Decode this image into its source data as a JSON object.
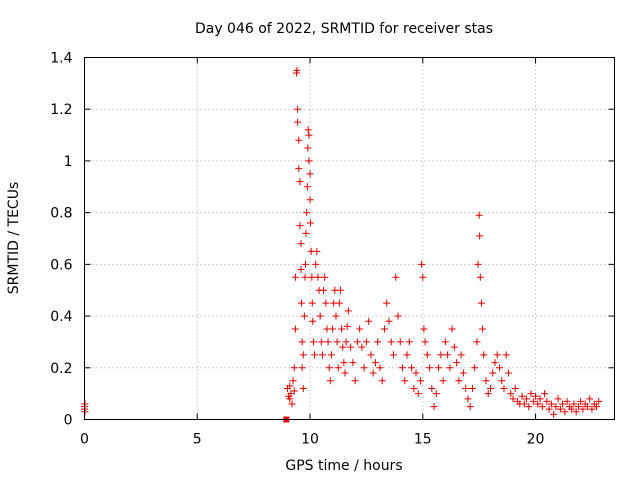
{
  "chart_data": {
    "type": "scatter",
    "title": "Day 046 of 2022, SRMTID for receiver stas",
    "xlabel": "GPS time / hours",
    "ylabel": "SRMTID / TECUs",
    "xlim": [
      0,
      23.5
    ],
    "ylim": [
      0,
      1.4
    ],
    "xticks": [
      0,
      5,
      10,
      15,
      20
    ],
    "xtick_labels": [
      "0",
      "5",
      "10",
      "15",
      "20"
    ],
    "yticks": [
      0,
      0.2,
      0.4,
      0.6,
      0.8,
      1.0,
      1.2,
      1.4
    ],
    "ytick_labels": [
      "0",
      "0.2",
      "0.4",
      "0.6",
      "0.8",
      "1",
      "1.2",
      "1.4"
    ],
    "grid": true,
    "marker": "plus",
    "color": "#e00000",
    "series": [
      {
        "name": "SRMTID",
        "points": [
          [
            0.0,
            0.05
          ],
          [
            0.0,
            0.04
          ],
          [
            0.02,
            0.06
          ],
          [
            0.02,
            0.03
          ],
          [
            8.95,
            0.0
          ],
          [
            9.0,
            0.12
          ],
          [
            9.05,
            0.09
          ],
          [
            9.1,
            0.08
          ],
          [
            9.1,
            0.13
          ],
          [
            9.15,
            0.1
          ],
          [
            9.2,
            0.06
          ],
          [
            9.25,
            0.15
          ],
          [
            9.3,
            0.2
          ],
          [
            9.3,
            0.11
          ],
          [
            9.35,
            0.35
          ],
          [
            9.35,
            0.55
          ],
          [
            9.4,
            1.34
          ],
          [
            9.42,
            1.35
          ],
          [
            9.45,
            1.2
          ],
          [
            9.45,
            1.15
          ],
          [
            9.5,
            1.08
          ],
          [
            9.5,
            0.97
          ],
          [
            9.55,
            0.92
          ],
          [
            9.55,
            0.75
          ],
          [
            9.6,
            0.68
          ],
          [
            9.6,
            0.58
          ],
          [
            9.62,
            0.45
          ],
          [
            9.65,
            0.3
          ],
          [
            9.65,
            0.2
          ],
          [
            9.7,
            0.12
          ],
          [
            9.7,
            0.25
          ],
          [
            9.75,
            0.4
          ],
          [
            9.78,
            0.55
          ],
          [
            9.8,
            0.6
          ],
          [
            9.82,
            0.72
          ],
          [
            9.85,
            0.8
          ],
          [
            9.88,
            0.9
          ],
          [
            9.9,
            1.05
          ],
          [
            9.92,
            1.12
          ],
          [
            9.95,
            1.1
          ],
          [
            9.95,
            1.0
          ],
          [
            10.0,
            0.95
          ],
          [
            10.0,
            0.85
          ],
          [
            10.02,
            0.76
          ],
          [
            10.05,
            0.65
          ],
          [
            10.08,
            0.55
          ],
          [
            10.1,
            0.45
          ],
          [
            10.12,
            0.38
          ],
          [
            10.15,
            0.3
          ],
          [
            10.2,
            0.25
          ],
          [
            10.25,
            0.6
          ],
          [
            10.3,
            0.65
          ],
          [
            10.35,
            0.55
          ],
          [
            10.4,
            0.5
          ],
          [
            10.45,
            0.4
          ],
          [
            10.5,
            0.3
          ],
          [
            10.55,
            0.25
          ],
          [
            10.6,
            0.5
          ],
          [
            10.65,
            0.55
          ],
          [
            10.7,
            0.45
          ],
          [
            10.75,
            0.35
          ],
          [
            10.8,
            0.3
          ],
          [
            10.85,
            0.2
          ],
          [
            10.9,
            0.15
          ],
          [
            10.95,
            0.25
          ],
          [
            11.0,
            0.35
          ],
          [
            11.05,
            0.45
          ],
          [
            11.1,
            0.5
          ],
          [
            11.15,
            0.4
          ],
          [
            11.2,
            0.3
          ],
          [
            11.25,
            0.2
          ],
          [
            11.3,
            0.45
          ],
          [
            11.35,
            0.5
          ],
          [
            11.4,
            0.35
          ],
          [
            11.45,
            0.28
          ],
          [
            11.5,
            0.22
          ],
          [
            11.55,
            0.18
          ],
          [
            11.6,
            0.3
          ],
          [
            11.65,
            0.36
          ],
          [
            11.7,
            0.42
          ],
          [
            11.8,
            0.28
          ],
          [
            11.9,
            0.22
          ],
          [
            12.0,
            0.15
          ],
          [
            12.1,
            0.3
          ],
          [
            12.2,
            0.35
          ],
          [
            12.3,
            0.28
          ],
          [
            12.4,
            0.2
          ],
          [
            12.5,
            0.3
          ],
          [
            12.6,
            0.38
          ],
          [
            12.7,
            0.25
          ],
          [
            12.8,
            0.18
          ],
          [
            12.9,
            0.22
          ],
          [
            13.0,
            0.3
          ],
          [
            13.1,
            0.2
          ],
          [
            13.2,
            0.15
          ],
          [
            13.3,
            0.35
          ],
          [
            13.4,
            0.45
          ],
          [
            13.5,
            0.38
          ],
          [
            13.6,
            0.3
          ],
          [
            13.7,
            0.25
          ],
          [
            13.8,
            0.55
          ],
          [
            13.9,
            0.4
          ],
          [
            14.0,
            0.3
          ],
          [
            14.1,
            0.2
          ],
          [
            14.2,
            0.15
          ],
          [
            14.3,
            0.25
          ],
          [
            14.4,
            0.3
          ],
          [
            14.5,
            0.2
          ],
          [
            14.6,
            0.12
          ],
          [
            14.7,
            0.18
          ],
          [
            14.8,
            0.1
          ],
          [
            14.9,
            0.15
          ],
          [
            14.95,
            0.6
          ],
          [
            15.0,
            0.55
          ],
          [
            15.05,
            0.35
          ],
          [
            15.1,
            0.3
          ],
          [
            15.2,
            0.25
          ],
          [
            15.3,
            0.2
          ],
          [
            15.4,
            0.12
          ],
          [
            15.5,
            0.05
          ],
          [
            15.6,
            0.1
          ],
          [
            15.7,
            0.2
          ],
          [
            15.8,
            0.25
          ],
          [
            15.9,
            0.15
          ],
          [
            16.0,
            0.3
          ],
          [
            16.1,
            0.25
          ],
          [
            16.2,
            0.2
          ],
          [
            16.3,
            0.35
          ],
          [
            16.4,
            0.28
          ],
          [
            16.5,
            0.22
          ],
          [
            16.6,
            0.15
          ],
          [
            16.7,
            0.25
          ],
          [
            16.8,
            0.18
          ],
          [
            16.9,
            0.12
          ],
          [
            17.0,
            0.08
          ],
          [
            17.1,
            0.05
          ],
          [
            17.2,
            0.12
          ],
          [
            17.3,
            0.2
          ],
          [
            17.4,
            0.3
          ],
          [
            17.45,
            0.6
          ],
          [
            17.5,
            0.79
          ],
          [
            17.52,
            0.71
          ],
          [
            17.55,
            0.55
          ],
          [
            17.6,
            0.45
          ],
          [
            17.65,
            0.35
          ],
          [
            17.7,
            0.25
          ],
          [
            17.8,
            0.15
          ],
          [
            17.9,
            0.1
          ],
          [
            18.0,
            0.12
          ],
          [
            18.1,
            0.18
          ],
          [
            18.2,
            0.22
          ],
          [
            18.3,
            0.25
          ],
          [
            18.4,
            0.2
          ],
          [
            18.5,
            0.15
          ],
          [
            18.6,
            0.12
          ],
          [
            18.7,
            0.25
          ],
          [
            18.8,
            0.18
          ],
          [
            18.9,
            0.1
          ],
          [
            19.0,
            0.08
          ],
          [
            19.1,
            0.12
          ],
          [
            19.2,
            0.07
          ],
          [
            19.3,
            0.06
          ],
          [
            19.4,
            0.09
          ],
          [
            19.5,
            0.06
          ],
          [
            19.6,
            0.08
          ],
          [
            19.7,
            0.05
          ],
          [
            19.8,
            0.1
          ],
          [
            19.9,
            0.07
          ],
          [
            20.0,
            0.09
          ],
          [
            20.1,
            0.06
          ],
          [
            20.2,
            0.08
          ],
          [
            20.3,
            0.05
          ],
          [
            20.4,
            0.1
          ],
          [
            20.5,
            0.07
          ],
          [
            20.6,
            0.04
          ],
          [
            20.7,
            0.06
          ],
          [
            20.8,
            0.02
          ],
          [
            20.9,
            0.05
          ],
          [
            21.0,
            0.08
          ],
          [
            21.1,
            0.04
          ],
          [
            21.2,
            0.06
          ],
          [
            21.3,
            0.03
          ],
          [
            21.4,
            0.07
          ],
          [
            21.5,
            0.05
          ],
          [
            21.6,
            0.04
          ],
          [
            21.7,
            0.06
          ],
          [
            21.8,
            0.03
          ],
          [
            21.9,
            0.05
          ],
          [
            22.0,
            0.07
          ],
          [
            22.1,
            0.04
          ],
          [
            22.2,
            0.06
          ],
          [
            22.3,
            0.05
          ],
          [
            22.4,
            0.08
          ],
          [
            22.5,
            0.04
          ],
          [
            22.6,
            0.06
          ],
          [
            22.7,
            0.05
          ],
          [
            22.8,
            0.07
          ]
        ]
      }
    ]
  }
}
